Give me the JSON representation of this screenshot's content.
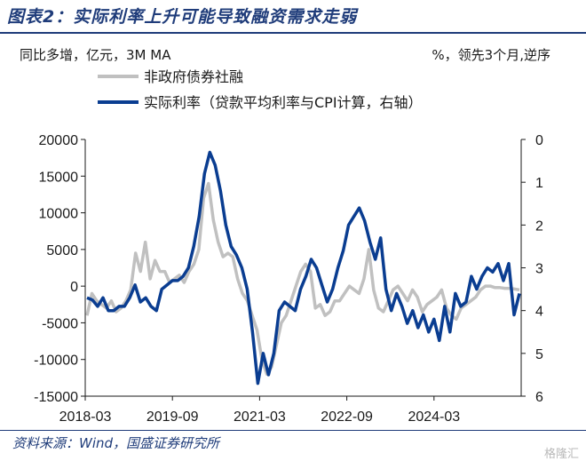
{
  "figure_title": "图表2：实际利率上升可能导致融资需求走弱",
  "source": "资料来源：Wind，国盛证券研究所",
  "watermark": "格隆汇",
  "chart_data": {
    "type": "line",
    "left_unit_label": "同比多增，亿元，3M MA",
    "right_unit_label": "%，领先3个月,逆序",
    "x_tick_labels": [
      "2018-03",
      "2019-09",
      "2021-03",
      "2022-09",
      "2024-03"
    ],
    "left_axis": {
      "min": -15000,
      "max": 20000,
      "ticks": [
        20000,
        15000,
        10000,
        5000,
        0,
        -5000,
        -10000,
        -15000
      ]
    },
    "right_axis": {
      "min": 0,
      "max": 6,
      "inverted": true,
      "ticks": [
        0,
        1,
        2,
        3,
        4,
        5,
        6
      ]
    },
    "colors": {
      "series1": "#c0c0c0",
      "series2": "#0a3d91"
    },
    "series": [
      {
        "name": "非政府债券社融",
        "axis": "left",
        "values": [
          -4000,
          -1000,
          -2000,
          -2500,
          -3000,
          -2000,
          -3500,
          -3000,
          -2000,
          -500,
          4500,
          2000,
          6000,
          1000,
          3500,
          2000,
          2000,
          500,
          1000,
          1500,
          500,
          2000,
          3000,
          5000,
          12000,
          14000,
          9000,
          6000,
          4000,
          4500,
          4000,
          1000,
          -1000,
          -2000,
          -4000,
          -6000,
          -10000,
          -12000,
          -11000,
          -8000,
          -5000,
          -4000,
          -2000,
          0,
          2000,
          3000,
          2000,
          -3000,
          -2500,
          -4000,
          -3500,
          -2000,
          -2000,
          -1000,
          0,
          -500,
          -1000,
          1000,
          5000,
          -500,
          -3000,
          -3500,
          -2000,
          -500,
          0,
          -1000,
          -2000,
          -500,
          -1500,
          -3500,
          -2500,
          -2000,
          -1500,
          -500,
          -3000,
          -4000,
          -4500,
          -3000,
          -2500,
          -2000,
          -1500,
          -500,
          0,
          0,
          -200,
          -200,
          -300,
          -300,
          -400,
          -500
        ]
      },
      {
        "name": "实际利率（贷款平均利率与CPI计算，右轴）",
        "axis": "right",
        "values": [
          3.7,
          3.75,
          3.9,
          3.7,
          4.0,
          4.0,
          3.9,
          3.9,
          3.7,
          3.4,
          3.8,
          3.7,
          3.9,
          4.0,
          3.5,
          3.4,
          3.3,
          3.3,
          3.2,
          3.0,
          2.5,
          1.8,
          0.8,
          0.3,
          0.6,
          1.2,
          2.0,
          2.5,
          2.7,
          3.0,
          3.5,
          4.5,
          5.7,
          5.0,
          5.5,
          5.0,
          4.0,
          3.8,
          3.9,
          4.0,
          3.5,
          3.2,
          2.8,
          3.0,
          3.4,
          3.8,
          3.5,
          3.0,
          2.6,
          2.0,
          1.8,
          1.6,
          1.9,
          2.4,
          2.8,
          2.3,
          3.5,
          4.0,
          3.6,
          3.9,
          4.3,
          4.0,
          4.4,
          4.1,
          4.5,
          4.2,
          4.7,
          3.9,
          4.5,
          3.6,
          3.9,
          3.8,
          3.2,
          3.5,
          3.2,
          3.0,
          3.1,
          2.9,
          3.3,
          2.9,
          4.1,
          3.6
        ]
      }
    ]
  }
}
